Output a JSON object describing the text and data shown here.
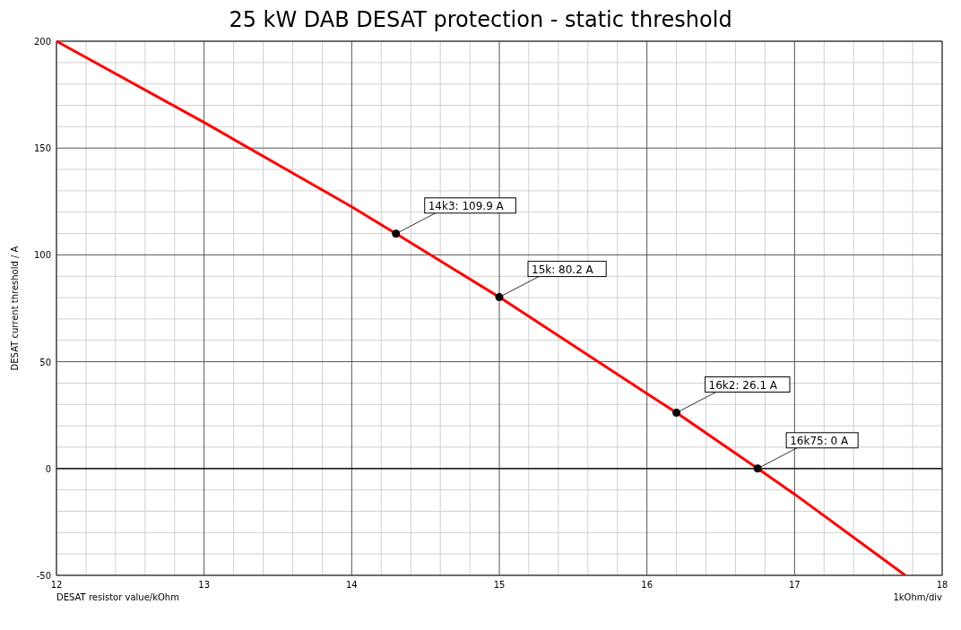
{
  "chart_data": {
    "type": "line",
    "title": "25 kW DAB DESAT protection - static threshold",
    "xlabel": "DESAT resistor value/kOhm",
    "ylabel": "DESAT current threshold / A",
    "series": [
      {
        "color": "#ff0000",
        "x": [
          12,
          13,
          14,
          14.3,
          15,
          16,
          16.2,
          16.75,
          17,
          17.75
        ],
        "values": [
          200,
          162,
          122.5,
          109.9,
          80.2,
          35,
          26.1,
          0,
          -12,
          -50
        ]
      },
      {
        "type": "scatter",
        "color": "#000000",
        "marker": "circle",
        "x": [
          14.3,
          15,
          16.2,
          16.75
        ],
        "values": [
          109.9,
          80.2,
          26.1,
          0
        ]
      }
    ],
    "annotations": [
      {
        "text": "14k3: 109.9 A",
        "x": 14.3,
        "y": 109.9
      },
      {
        "text": "15k: 80.2 A",
        "x": 15,
        "y": 80.2
      },
      {
        "text": "16k2: 26.1 A",
        "x": 16.2,
        "y": 26.1
      },
      {
        "text": "16k75: 0 A",
        "x": 16.75,
        "y": 0
      },
      "1kOhm/div"
    ],
    "ref_lines": [
      {
        "axis": "y",
        "value": 0,
        "color": "#000000"
      }
    ],
    "xlim": [
      12,
      18
    ],
    "xticks": [
      12,
      13,
      14,
      15,
      16,
      17,
      18
    ],
    "ylim": [
      -50,
      200
    ],
    "yticks": [
      -50,
      0,
      50,
      100,
      150,
      200
    ],
    "grid": true
  }
}
